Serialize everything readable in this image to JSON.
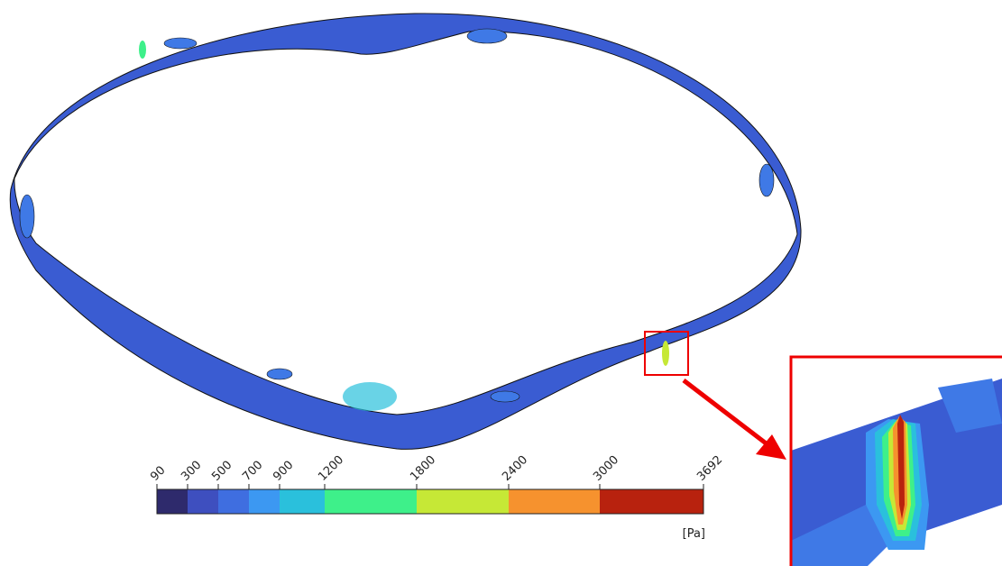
{
  "colorbar": {
    "ticks": [
      90,
      300,
      500,
      700,
      900,
      1200,
      1800,
      2400,
      3000,
      3692
    ],
    "colors": [
      "#2e2a6c",
      "#3e4fbf",
      "#3f6ee0",
      "#3c98f2",
      "#2ac0dc",
      "#3ef08a",
      "#c6e836",
      "#f6922e",
      "#b8220e"
    ],
    "unit": "[Pa]"
  }
}
